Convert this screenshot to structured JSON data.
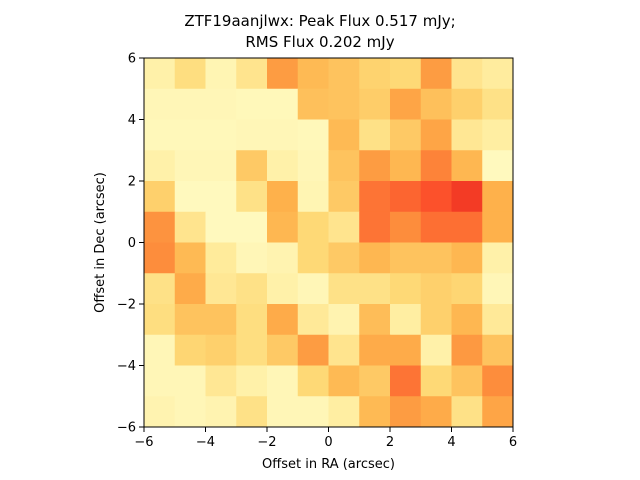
{
  "chart_data": {
    "type": "heatmap",
    "title_lines": [
      "ZTF19aanjlwx: Peak Flux 0.517 mJy;",
      "RMS Flux 0.202 mJy"
    ],
    "xlabel": "Offset in RA (arcsec)",
    "ylabel": "Offset in Dec (arcsec)",
    "xlim": [
      -6,
      6
    ],
    "ylim": [
      -6,
      6
    ],
    "xticks": [
      -6,
      -4,
      -2,
      0,
      2,
      4,
      6
    ],
    "yticks": [
      -6,
      -4,
      -2,
      0,
      2,
      4,
      6
    ],
    "xtick_labels": [
      "−6",
      "−4",
      "−2",
      "0",
      "2",
      "4",
      "6"
    ],
    "ytick_labels": [
      "−6",
      "−4",
      "−2",
      "0",
      "2",
      "4",
      "6"
    ],
    "colormap": "YlOrRd",
    "value_range": [
      0,
      1
    ],
    "grid": false,
    "z_rows_top_to_bottom": [
      [
        0.1,
        0.22,
        0.07,
        0.18,
        0.45,
        0.35,
        0.32,
        0.27,
        0.25,
        0.45,
        0.18,
        0.13
      ],
      [
        0.06,
        0.06,
        0.06,
        0.05,
        0.05,
        0.33,
        0.32,
        0.29,
        0.42,
        0.33,
        0.28,
        0.2
      ],
      [
        0.05,
        0.05,
        0.05,
        0.06,
        0.06,
        0.05,
        0.35,
        0.2,
        0.3,
        0.42,
        0.16,
        0.12
      ],
      [
        0.1,
        0.06,
        0.06,
        0.3,
        0.1,
        0.06,
        0.32,
        0.45,
        0.36,
        0.52,
        0.36,
        0.04
      ],
      [
        0.28,
        0.04,
        0.04,
        0.2,
        0.38,
        0.07,
        0.3,
        0.55,
        0.58,
        0.62,
        0.67,
        0.38
      ],
      [
        0.48,
        0.18,
        0.04,
        0.04,
        0.36,
        0.25,
        0.18,
        0.55,
        0.5,
        0.56,
        0.56,
        0.38
      ],
      [
        0.5,
        0.35,
        0.14,
        0.06,
        0.08,
        0.25,
        0.3,
        0.36,
        0.32,
        0.32,
        0.36,
        0.1
      ],
      [
        0.2,
        0.4,
        0.16,
        0.2,
        0.1,
        0.06,
        0.2,
        0.2,
        0.25,
        0.28,
        0.26,
        0.06
      ],
      [
        0.22,
        0.32,
        0.32,
        0.22,
        0.4,
        0.15,
        0.08,
        0.34,
        0.12,
        0.28,
        0.36,
        0.15
      ],
      [
        0.06,
        0.26,
        0.28,
        0.22,
        0.3,
        0.45,
        0.18,
        0.4,
        0.4,
        0.1,
        0.46,
        0.32
      ],
      [
        0.06,
        0.06,
        0.16,
        0.1,
        0.06,
        0.25,
        0.35,
        0.3,
        0.55,
        0.25,
        0.32,
        0.5
      ],
      [
        0.08,
        0.06,
        0.08,
        0.2,
        0.06,
        0.06,
        0.12,
        0.35,
        0.45,
        0.4,
        0.2,
        0.42
      ]
    ]
  }
}
